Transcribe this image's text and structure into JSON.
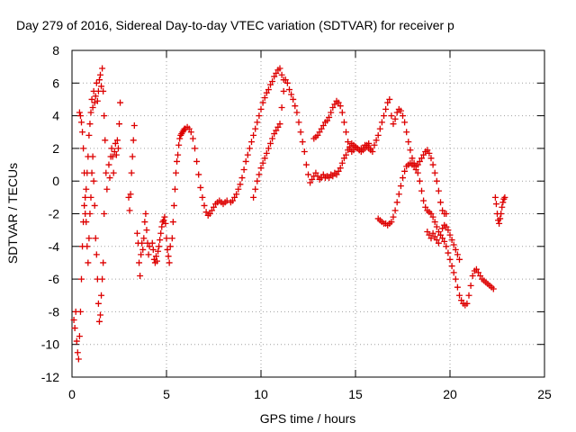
{
  "chart_data": {
    "type": "scatter",
    "title": "Day 279 of 2016, Sidereal Day-to-day VTEC variation (SDTVAR) for receiver p",
    "xlabel": "GPS time / hours",
    "ylabel": "SDTVAR / TECUs",
    "xlim": [
      0,
      25
    ],
    "ylim": [
      -12,
      8
    ],
    "xticks": [
      0,
      5,
      10,
      15,
      20,
      25
    ],
    "yticks": [
      -12,
      -10,
      -8,
      -6,
      -4,
      -2,
      0,
      2,
      4,
      6,
      8
    ],
    "grid": true,
    "marker": "plus",
    "color": "#dd0000",
    "series": [
      {
        "x": [
          0.1,
          0.15,
          0.2,
          0.25,
          0.3,
          0.35,
          0.4,
          0.45,
          0.5,
          0.55,
          0.6,
          0.65,
          0.7,
          0.75,
          0.8,
          0.85,
          0.9,
          0.95,
          1.0,
          1.05,
          1.1,
          1.15,
          1.2,
          1.25,
          1.3,
          1.35,
          1.4,
          1.45,
          1.5,
          1.55,
          1.6,
          1.65,
          1.7,
          1.75,
          1.8,
          1.85,
          0.4,
          0.45,
          0.5,
          0.55,
          0.6,
          0.65,
          0.7,
          0.75,
          0.8,
          0.85,
          0.9,
          0.95,
          1.0,
          1.05,
          1.1,
          1.15,
          1.2,
          1.25,
          1.3,
          1.35,
          1.4,
          1.45,
          1.5,
          1.55,
          1.6,
          1.65,
          1.7,
          1.95,
          2.0,
          2.05,
          2.1,
          2.15,
          2.2,
          2.25,
          2.3,
          2.35,
          2.4,
          2.45,
          2.5,
          2.55,
          3.0,
          3.05,
          3.1,
          3.15,
          3.2,
          3.25,
          3.3,
          3.45,
          3.5,
          3.55,
          3.6,
          3.65,
          3.7,
          3.75,
          3.8,
          3.85,
          3.9,
          3.95,
          4.0,
          4.05,
          4.1,
          4.25,
          4.3,
          4.35,
          4.4,
          4.45,
          4.5,
          4.55,
          4.6,
          4.65,
          4.7,
          4.75,
          4.8,
          4.85,
          4.9,
          4.95,
          5.0,
          5.05,
          5.1,
          5.15,
          5.2,
          5.3,
          5.35,
          5.4,
          5.45,
          5.5,
          5.55,
          5.6,
          5.65,
          5.7,
          5.75,
          5.8,
          5.85,
          5.9,
          5.95,
          6.0,
          6.1,
          6.2,
          6.3,
          6.4,
          6.5,
          6.6,
          6.7,
          6.8,
          6.9,
          7.0,
          7.1,
          7.2,
          7.3,
          7.4,
          7.5,
          7.6,
          7.7,
          7.8,
          7.9,
          8.0,
          8.1,
          8.2,
          8.4,
          8.5,
          8.6,
          8.7,
          8.8,
          8.9,
          9.0,
          9.1,
          9.2,
          9.3,
          9.4,
          9.5,
          9.6,
          9.7,
          9.8,
          9.9,
          10.0,
          10.1,
          10.2,
          10.3,
          10.4,
          10.5,
          10.6,
          10.7,
          10.8,
          10.9,
          11.0,
          11.1,
          11.2,
          9.6,
          9.7,
          9.8,
          9.9,
          10.0,
          10.1,
          10.2,
          10.3,
          10.4,
          10.5,
          10.6,
          10.7,
          10.8,
          10.9,
          11.0,
          11.1,
          11.2,
          11.3,
          11.4,
          11.5,
          11.6,
          11.7,
          11.8,
          11.9,
          12.0,
          12.1,
          12.2,
          12.3,
          12.4,
          12.5,
          12.6,
          12.7,
          12.8,
          12.9,
          13.0,
          13.1,
          13.2,
          13.3,
          12.8,
          12.9,
          13.0,
          13.1,
          13.2,
          13.3,
          13.4,
          13.5,
          13.6,
          13.7,
          13.8,
          13.9,
          14.0,
          14.1,
          14.2,
          14.3,
          14.4,
          14.5,
          14.6,
          14.7,
          14.8,
          14.9,
          15.0,
          15.1,
          15.2,
          15.3,
          15.4,
          15.5,
          15.6,
          15.7,
          15.8,
          13.4,
          13.5,
          13.6,
          13.7,
          13.8,
          13.9,
          14.0,
          14.1,
          14.2,
          14.3,
          14.4,
          14.5,
          14.6,
          14.7,
          14.8,
          14.9,
          15.0,
          15.1,
          15.2,
          15.3,
          15.4,
          15.5,
          15.6,
          15.7,
          15.8,
          15.9,
          16.0,
          16.1,
          16.2,
          16.3,
          16.4,
          16.5,
          16.6,
          16.7,
          16.8,
          16.9,
          17.0,
          17.1,
          17.2,
          17.3,
          17.4,
          17.5,
          17.6,
          17.7,
          17.8,
          17.9,
          18.0,
          18.1,
          18.2,
          18.3,
          18.4,
          18.5,
          18.6,
          18.7,
          18.8,
          18.9,
          19.0,
          19.1,
          19.2,
          19.3,
          19.4,
          19.5,
          19.6,
          19.7,
          19.8,
          16.2,
          16.3,
          16.4,
          16.5,
          16.6,
          16.7,
          16.8,
          16.9,
          17.0,
          17.1,
          17.2,
          17.3,
          17.4,
          17.5,
          17.6,
          17.7,
          17.8,
          17.9,
          18.0,
          18.1,
          18.2,
          18.3,
          18.4,
          18.5,
          18.6,
          18.7,
          18.8,
          18.9,
          19.0,
          19.1,
          19.2,
          19.3,
          19.4,
          19.5,
          19.6,
          19.7,
          19.8,
          19.9,
          20.0,
          20.1,
          20.2,
          20.3,
          20.4,
          20.5,
          20.6,
          20.7,
          20.8,
          20.9,
          21.0,
          21.1,
          21.2,
          21.3,
          21.4,
          21.5,
          21.6,
          21.7,
          21.8,
          21.9,
          22.0,
          22.1,
          22.2,
          22.3,
          18.8,
          18.9,
          19.0,
          19.1,
          19.2,
          19.3,
          19.4,
          19.5,
          19.6,
          19.7,
          19.8,
          19.9,
          20.0,
          20.1,
          20.2,
          20.3,
          20.4,
          20.5,
          22.4,
          22.45,
          22.5,
          22.55,
          22.6,
          22.65,
          22.7,
          22.75,
          22.8,
          22.85,
          22.9
        ],
        "y": [
          -8.5,
          -9.0,
          -8.0,
          -9.8,
          -10.5,
          -10.9,
          -9.5,
          -8.0,
          -6.0,
          -4.0,
          -2.5,
          -1.5,
          -2.0,
          -0.5,
          0.5,
          1.5,
          2.8,
          3.5,
          4.2,
          5.0,
          4.5,
          5.5,
          4.8,
          5.2,
          6.0,
          4.9,
          5.5,
          6.2,
          6.5,
          5.8,
          6.9,
          5.5,
          4.0,
          2.5,
          0.5,
          -0.5,
          4.2,
          4.0,
          3.6,
          3.0,
          2.0,
          0.5,
          -1.0,
          -2.5,
          -4.0,
          -5.0,
          -3.5,
          -2.0,
          -1.0,
          0.5,
          1.5,
          0.0,
          -1.5,
          -3.5,
          -4.5,
          -6.0,
          -7.5,
          -8.6,
          -8.2,
          -7.0,
          -6.0,
          -5.0,
          -2.0,
          1.0,
          0.2,
          1.5,
          2.0,
          1.5,
          0.5,
          1.8,
          2.3,
          1.6,
          2.5,
          2.0,
          3.5,
          4.8,
          -1.0,
          -1.8,
          -0.8,
          0.5,
          1.5,
          2.5,
          3.4,
          -3.2,
          -3.8,
          -5.0,
          -5.8,
          -4.5,
          -3.8,
          -4.2,
          -3.5,
          -2.5,
          -2.0,
          -3.0,
          -3.8,
          -4.5,
          -4.0,
          -3.8,
          -4.2,
          -4.8,
          -5.0,
          -4.6,
          -4.9,
          -4.3,
          -4.0,
          -3.6,
          -3.2,
          -2.8,
          -2.5,
          -2.4,
          -2.2,
          -2.6,
          -3.5,
          -4.2,
          -4.6,
          -5.0,
          -4.0,
          -3.5,
          -2.5,
          -1.5,
          -0.5,
          0.5,
          1.2,
          1.6,
          2.2,
          2.6,
          2.8,
          2.9,
          3.0,
          3.1,
          3.2,
          3.2,
          3.3,
          3.2,
          3.0,
          2.6,
          2.0,
          1.2,
          0.4,
          -0.4,
          -1.0,
          -1.5,
          -1.9,
          -2.1,
          -2.0,
          -1.8,
          -1.6,
          -1.4,
          -1.3,
          -1.2,
          -1.3,
          -1.4,
          -1.3,
          -1.2,
          -1.3,
          -1.2,
          -1.0,
          -0.8,
          -0.5,
          -0.2,
          0.2,
          0.7,
          1.2,
          1.6,
          2.0,
          2.4,
          2.8,
          3.2,
          3.6,
          4.0,
          4.4,
          4.8,
          5.1,
          5.4,
          5.6,
          5.9,
          6.1,
          6.4,
          6.6,
          6.8,
          6.9,
          6.5,
          6.2,
          -1.0,
          -0.5,
          0.0,
          0.4,
          0.8,
          1.1,
          1.4,
          1.7,
          2.0,
          2.3,
          2.6,
          2.9,
          3.1,
          3.3,
          3.5,
          4.5,
          5.5,
          6.2,
          6.0,
          5.6,
          5.3,
          5.0,
          4.6,
          4.2,
          3.6,
          3.0,
          2.4,
          1.8,
          1.0,
          0.4,
          -0.1,
          0.1,
          0.3,
          0.5,
          0.3,
          0.1,
          0.2,
          0.4,
          2.6,
          2.7,
          2.8,
          3.0,
          3.2,
          3.4,
          3.6,
          3.7,
          3.9,
          4.2,
          4.5,
          4.7,
          4.9,
          4.8,
          4.6,
          4.2,
          3.6,
          3.0,
          2.4,
          2.0,
          1.8,
          1.9,
          2.1,
          2.0,
          1.9,
          1.8,
          2.0,
          2.2,
          2.1,
          2.0,
          1.9,
          0.2,
          0.3,
          0.2,
          0.4,
          0.3,
          0.5,
          0.4,
          0.6,
          0.8,
          1.1,
          1.4,
          1.6,
          1.9,
          2.1,
          2.3,
          2.2,
          2.1,
          2.0,
          1.9,
          2.0,
          1.9,
          2.0,
          2.2,
          2.3,
          2.0,
          1.8,
          2.2,
          2.5,
          2.8,
          3.2,
          3.6,
          4.0,
          4.4,
          4.8,
          5.0,
          4.0,
          3.5,
          3.8,
          4.2,
          4.4,
          4.3,
          4.0,
          3.6,
          3.0,
          2.4,
          1.9,
          1.4,
          1.1,
          0.9,
          1.0,
          1.2,
          1.4,
          1.6,
          1.8,
          1.9,
          1.7,
          1.4,
          1.0,
          0.5,
          0.0,
          -0.6,
          -1.3,
          -1.8,
          -2.0,
          -2.0,
          -2.3,
          -2.4,
          -2.5,
          -2.6,
          -2.6,
          -2.7,
          -2.6,
          -2.5,
          -2.2,
          -1.8,
          -1.3,
          -0.8,
          -0.3,
          0.2,
          0.6,
          0.9,
          1.0,
          1.1,
          1.0,
          0.9,
          0.7,
          0.5,
          0.0,
          -0.6,
          -1.2,
          -1.6,
          -1.8,
          -1.9,
          -2.0,
          -2.2,
          -2.5,
          -2.8,
          -3.1,
          -3.3,
          -3.5,
          -3.7,
          -4.0,
          -4.4,
          -4.8,
          -5.2,
          -5.6,
          -6.0,
          -6.5,
          -7.0,
          -7.3,
          -7.5,
          -7.6,
          -7.5,
          -7.0,
          -6.4,
          -5.8,
          -5.5,
          -5.4,
          -5.6,
          -5.8,
          -6.0,
          -6.1,
          -6.2,
          -6.3,
          -6.4,
          -6.5,
          -6.6,
          -3.1,
          -3.3,
          -3.5,
          -3.2,
          -3.4,
          -3.6,
          -3.8,
          -3.3,
          -2.9,
          -2.7,
          -2.8,
          -3.0,
          -3.3,
          -3.6,
          -3.9,
          -4.2,
          -4.5,
          -4.8,
          -1.0,
          -1.4,
          -2.0,
          -2.4,
          -2.6,
          -2.3,
          -2.0,
          -1.6,
          -1.3,
          -1.1,
          -1.0
        ]
      }
    ]
  }
}
